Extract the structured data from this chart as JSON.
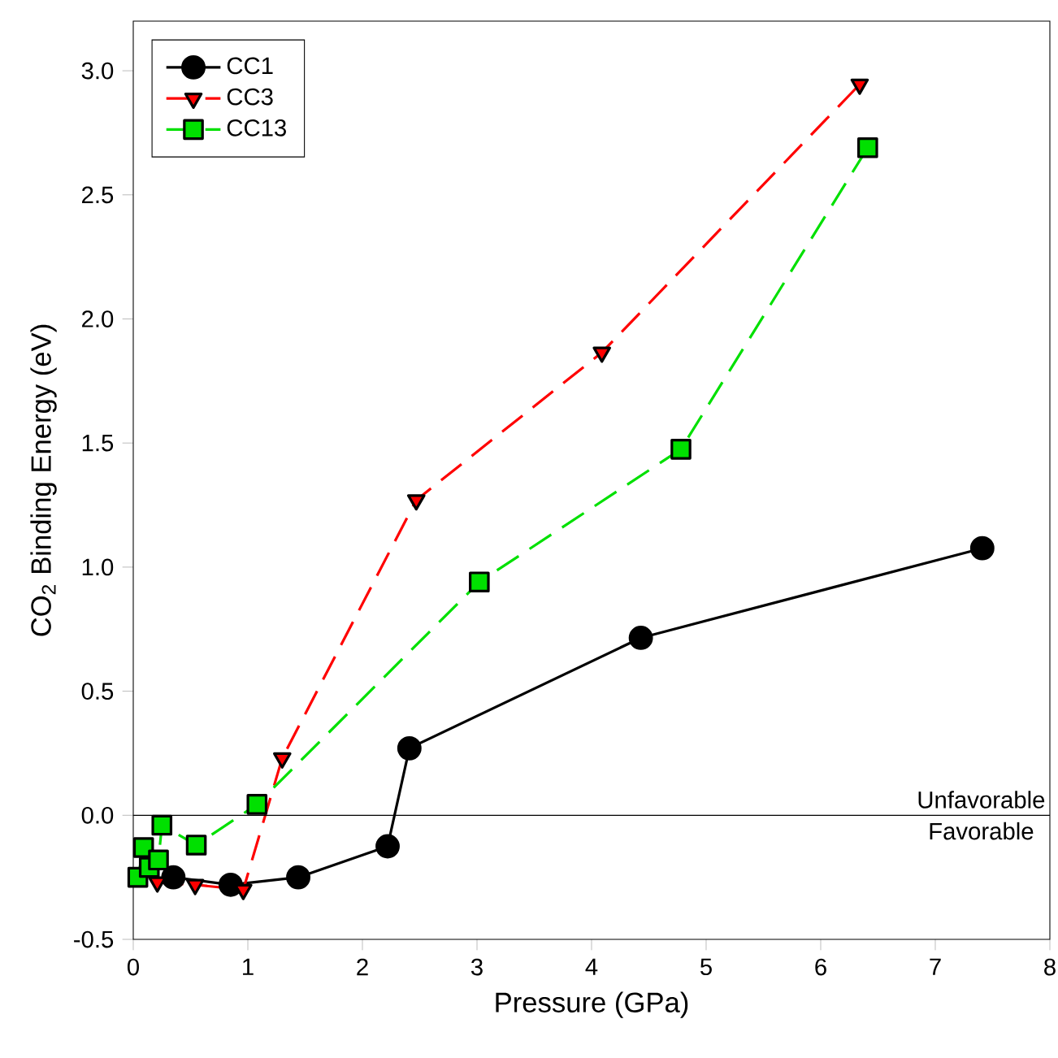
{
  "chart_data": {
    "type": "line",
    "xlabel": "Pressure (GPa)",
    "ylabel": "CO$_{2}$ Binding Energy (eV)",
    "xlim": [
      0,
      8
    ],
    "ylim": [
      -0.5,
      3.2
    ],
    "xticks": [
      0,
      1,
      2,
      3,
      4,
      5,
      6,
      7,
      8
    ],
    "yticks": [
      -0.5,
      {
        "value": 0,
        "label": "0.0"
      },
      0.5,
      {
        "value": 1,
        "label": "1.0"
      },
      1.5,
      {
        "value": 2,
        "label": "2.0"
      },
      2.5,
      {
        "value": 3,
        "label": "3.0"
      }
    ],
    "grid": false,
    "legend": "top left",
    "series": [
      {
        "name": "CC1",
        "color": "#000000",
        "marker": "circle",
        "line_style": "solid",
        "x": [
          0.35,
          0.85,
          1.44,
          2.22,
          2.41,
          4.43,
          7.41
        ],
        "values": [
          -0.25,
          -0.28,
          -0.25,
          -0.125,
          0.27,
          0.715,
          1.076
        ]
      },
      {
        "name": "CC3",
        "color": "#ff0000",
        "marker": "triangle",
        "line_style": "dashed",
        "x": [
          0.21,
          0.54,
          0.96,
          1.3,
          2.47,
          4.09,
          6.34
        ],
        "values": [
          -0.27,
          -0.28,
          -0.3,
          0.23,
          1.27,
          1.865,
          2.945
        ]
      },
      {
        "name": "CC13",
        "color": "#00e000",
        "marker": "square",
        "line_style": "dashed",
        "x": [
          0.04,
          0.09,
          0.14,
          0.22,
          0.25,
          0.55,
          1.08,
          3.02,
          4.78,
          6.41
        ],
        "values": [
          -0.25,
          -0.13,
          -0.21,
          -0.18,
          -0.04,
          -0.12,
          0.044,
          0.94,
          1.475,
          2.69
        ]
      }
    ],
    "ref_lines": [
      {
        "axis": "y",
        "value": 0,
        "color": "#000000"
      }
    ],
    "annotations": [
      {
        "text": "Unfavorable",
        "x": 7.4,
        "y": 0
      },
      {
        "text": "Favorable",
        "x": 7.4,
        "y": 0
      }
    ]
  }
}
